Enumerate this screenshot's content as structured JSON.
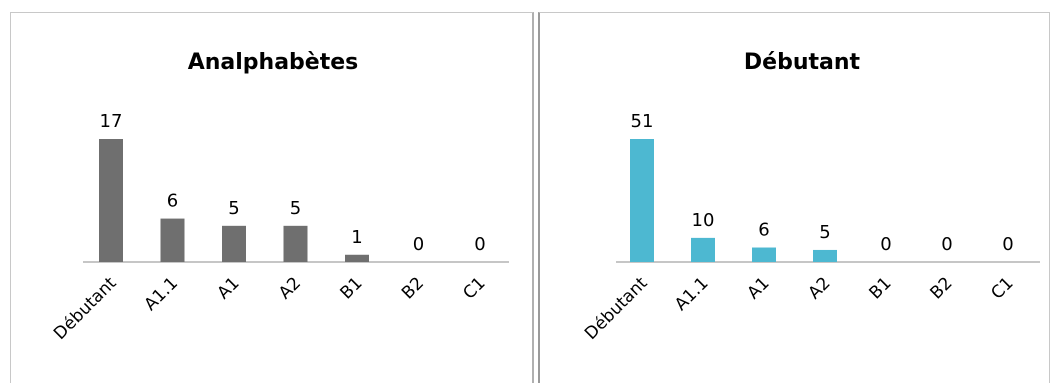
{
  "chart_data": [
    {
      "type": "bar",
      "title": "Analphabètes",
      "categories": [
        "Débutant",
        "A1.1",
        "A1",
        "A2",
        "B1",
        "B2",
        "C1"
      ],
      "values": [
        17,
        6,
        5,
        5,
        1,
        0,
        0
      ],
      "color": "#6f6f6f",
      "ylim": [
        0,
        17
      ],
      "grid": false,
      "legend": "none"
    },
    {
      "type": "bar",
      "title": "Débutant",
      "categories": [
        "Débutant",
        "A1.1",
        "A1",
        "A2",
        "B1",
        "B2",
        "C1"
      ],
      "values": [
        51,
        10,
        6,
        5,
        0,
        0,
        0
      ],
      "color": "#4db8d1",
      "ylim": [
        0,
        51
      ],
      "grid": false,
      "legend": "none"
    }
  ]
}
